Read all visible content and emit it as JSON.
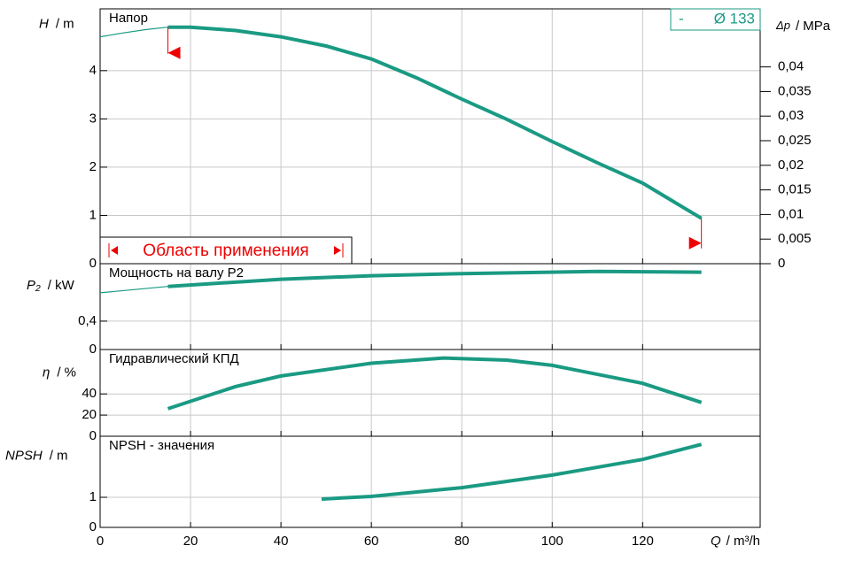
{
  "chart_data": [
    {
      "type": "line",
      "title": "Напор",
      "ylabel": {
        "symbol": "H",
        "unit": "/ m"
      },
      "y2label": {
        "symbol": "Δp",
        "unit": "/ MPa"
      },
      "ylim": [
        0,
        5.28
      ],
      "yticks": [
        0,
        1,
        2,
        3,
        4
      ],
      "y2lim": [
        0,
        0.0518
      ],
      "y2ticks": [
        0,
        {
          "value": 0.005,
          "label": "0,005"
        },
        {
          "value": 0.01,
          "label": "0,01"
        },
        {
          "value": 0.015,
          "label": "0,015"
        },
        {
          "value": 0.02,
          "label": "0,02"
        },
        {
          "value": 0.025,
          "label": "0,025"
        },
        {
          "value": 0.03,
          "label": "0,03"
        },
        {
          "value": 0.035,
          "label": "0,035"
        },
        {
          "value": 0.04,
          "label": "0,04"
        }
      ],
      "legend_marker": "-",
      "series": [
        {
          "name": "Ø 133",
          "color": "#1a9a83",
          "x": [
            15,
            20,
            30,
            40,
            50,
            60,
            70,
            80,
            90,
            100,
            110,
            120,
            133
          ],
          "values": [
            4.9,
            4.9,
            4.83,
            4.7,
            4.51,
            4.24,
            3.85,
            3.41,
            2.99,
            2.53,
            2.09,
            1.67,
            0.94
          ]
        }
      ],
      "extension": {
        "x": [
          0,
          5,
          10,
          15
        ],
        "values": [
          4.7,
          4.78,
          4.85,
          4.9
        ]
      },
      "operating_range": [
        15,
        133
      ],
      "annotation": "Область применения",
      "grid": true
    },
    {
      "type": "line",
      "title": "Мощность на валу P2",
      "ylabel": {
        "symbol": "P₂",
        "unit": "/ kW"
      },
      "ylim": [
        0,
        1.21
      ],
      "yticks": [
        0,
        {
          "value": 0.4,
          "label": "0,4"
        }
      ],
      "series": [
        {
          "color": "#1a9a83",
          "x": [
            15,
            40,
            60,
            80,
            110,
            133
          ],
          "values": [
            0.89,
            0.99,
            1.04,
            1.07,
            1.1,
            1.09
          ]
        }
      ],
      "extension": {
        "x": [
          0,
          15
        ],
        "values": [
          0.8,
          0.89
        ]
      },
      "grid": true
    },
    {
      "type": "line",
      "title": "Гидравлический КПД",
      "ylabel": {
        "symbol": "η",
        "unit": "/ %"
      },
      "ylim": [
        0,
        82
      ],
      "yticks": [
        0,
        20,
        40
      ],
      "series": [
        {
          "color": "#1a9a83",
          "x": [
            15,
            30,
            40,
            60,
            76,
            90,
            100,
            120,
            133
          ],
          "values": [
            26,
            47,
            57,
            69,
            74,
            72,
            67,
            50,
            32
          ]
        }
      ],
      "grid": true
    },
    {
      "type": "line",
      "title": "NPSH - значения",
      "ylabel": {
        "symbol": "NPSH",
        "unit": "/ m"
      },
      "xlabel": {
        "symbol": "Q",
        "unit": "/ m³/h"
      },
      "ylim": [
        0,
        3.03
      ],
      "yticks": [
        0,
        1
      ],
      "xlim": [
        0,
        146
      ],
      "xticks": [
        0,
        20,
        40,
        60,
        80,
        100,
        120
      ],
      "series": [
        {
          "color": "#1a9a83",
          "x": [
            49,
            60,
            80,
            100,
            120,
            133
          ],
          "values": [
            0.94,
            1.03,
            1.32,
            1.74,
            2.26,
            2.76
          ]
        }
      ],
      "grid": true
    }
  ]
}
